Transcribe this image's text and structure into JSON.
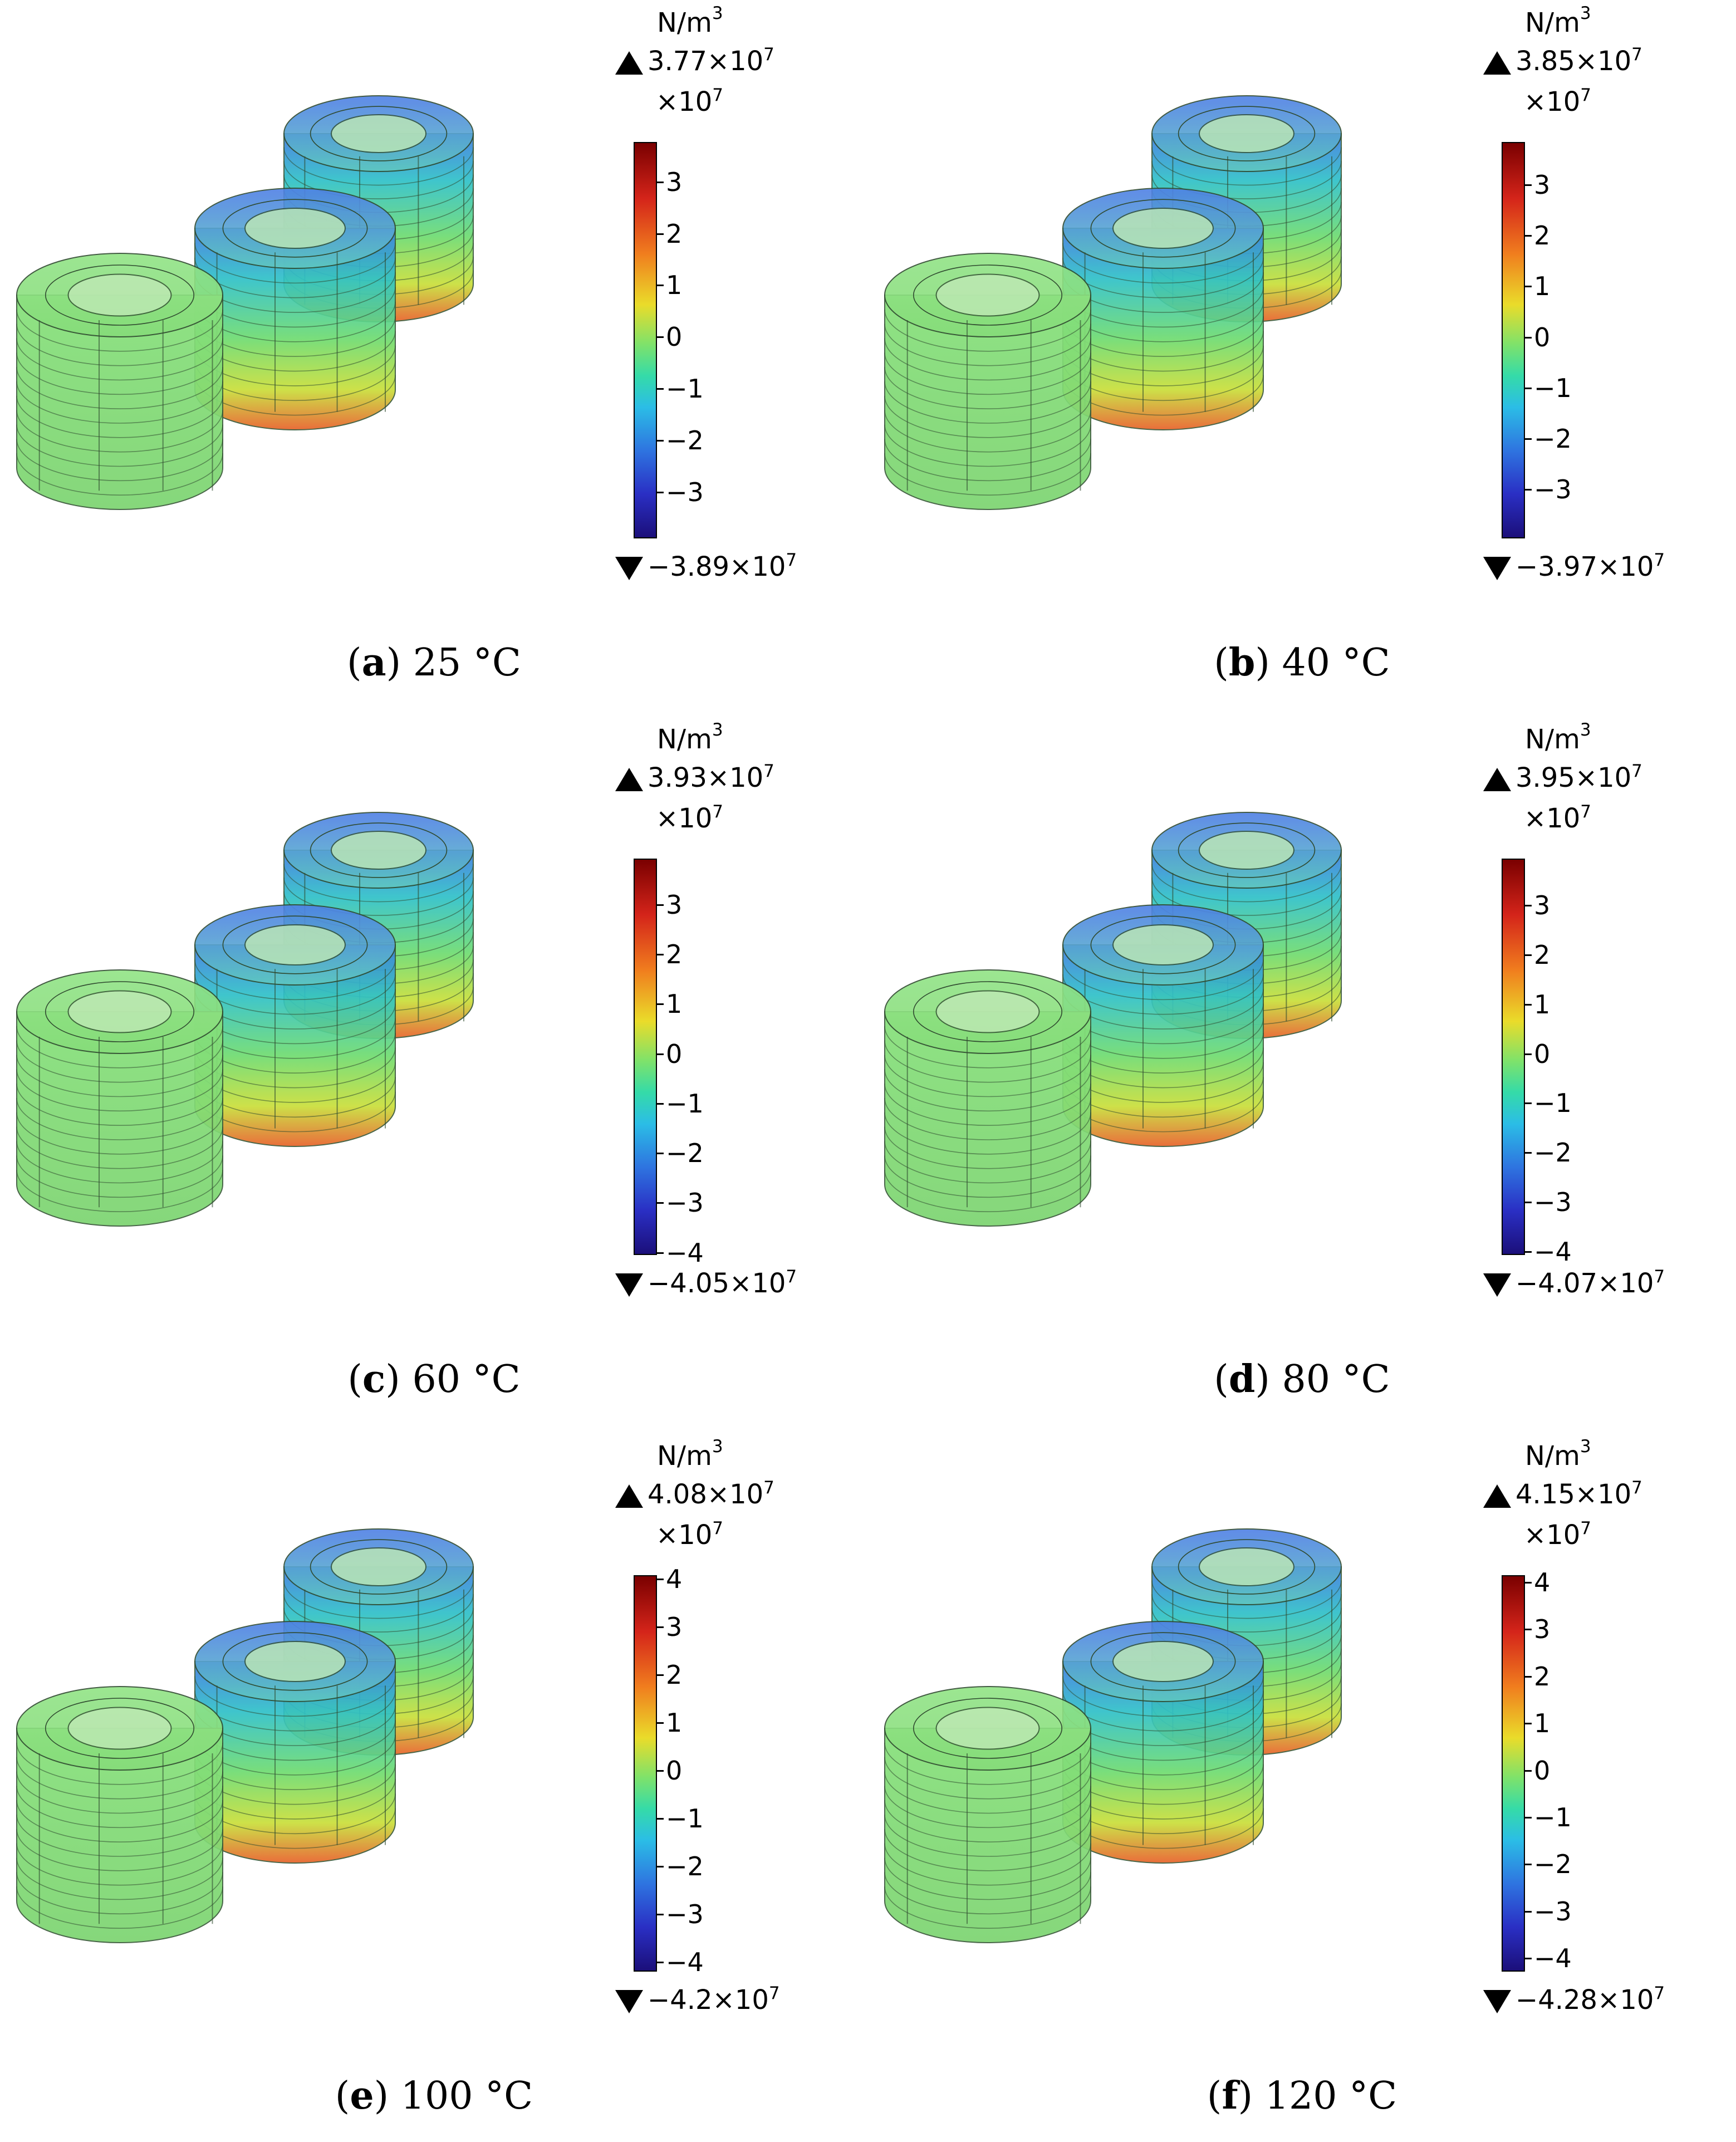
{
  "unit": "N/m",
  "unit_exponent": "3",
  "multiplier": "×10",
  "multiplier_exponent": "7",
  "panels": [
    {
      "letter": "a",
      "temperature": "25 °C",
      "max": "3.77×10",
      "min": "−3.89×10",
      "ticks": [
        "3",
        "2",
        "1",
        "0",
        "−1",
        "−2",
        "−3"
      ],
      "tick_values": [
        3,
        2,
        1,
        0,
        -1,
        -2,
        -3
      ],
      "range": [
        -3.89,
        3.77
      ]
    },
    {
      "letter": "b",
      "temperature": "40 °C",
      "max": "3.85×10",
      "min": "−3.97×10",
      "ticks": [
        "3",
        "2",
        "1",
        "0",
        "−1",
        "−2",
        "−3"
      ],
      "tick_values": [
        3,
        2,
        1,
        0,
        -1,
        -2,
        -3
      ],
      "range": [
        -3.97,
        3.85
      ]
    },
    {
      "letter": "c",
      "temperature": "60 °C",
      "max": "3.93×10",
      "min": "−4.05×10",
      "ticks": [
        "3",
        "2",
        "1",
        "0",
        "−1",
        "−2",
        "−3",
        "−4"
      ],
      "tick_values": [
        3,
        2,
        1,
        0,
        -1,
        -2,
        -3,
        -4
      ],
      "range": [
        -4.05,
        3.93
      ]
    },
    {
      "letter": "d",
      "temperature": "80 °C",
      "max": "3.95×10",
      "min": "−4.07×10",
      "ticks": [
        "3",
        "2",
        "1",
        "0",
        "−1",
        "−2",
        "−3",
        "−4"
      ],
      "tick_values": [
        3,
        2,
        1,
        0,
        -1,
        -2,
        -3,
        -4
      ],
      "range": [
        -4.07,
        3.95
      ]
    },
    {
      "letter": "e",
      "temperature": "100 °C",
      "max": "4.08×10",
      "min": "−4.2×10",
      "ticks": [
        "4",
        "3",
        "2",
        "1",
        "0",
        "−1",
        "−2",
        "−3",
        "−4"
      ],
      "tick_values": [
        4,
        3,
        2,
        1,
        0,
        -1,
        -2,
        -3,
        -4
      ],
      "range": [
        -4.2,
        4.08
      ]
    },
    {
      "letter": "f",
      "temperature": "120 °C",
      "max": "4.15×10",
      "min": "−4.28×10",
      "ticks": [
        "4",
        "3",
        "2",
        "1",
        "0",
        "−1",
        "−2",
        "−3",
        "−4"
      ],
      "tick_values": [
        4,
        3,
        2,
        1,
        0,
        -1,
        -2,
        -3,
        -4
      ],
      "range": [
        -4.28,
        4.15
      ]
    }
  ],
  "colors": {
    "low": "#1b0f7a",
    "mid": "#7fe26a",
    "high": "#7a0000",
    "coil_green": "#86e07a"
  }
}
